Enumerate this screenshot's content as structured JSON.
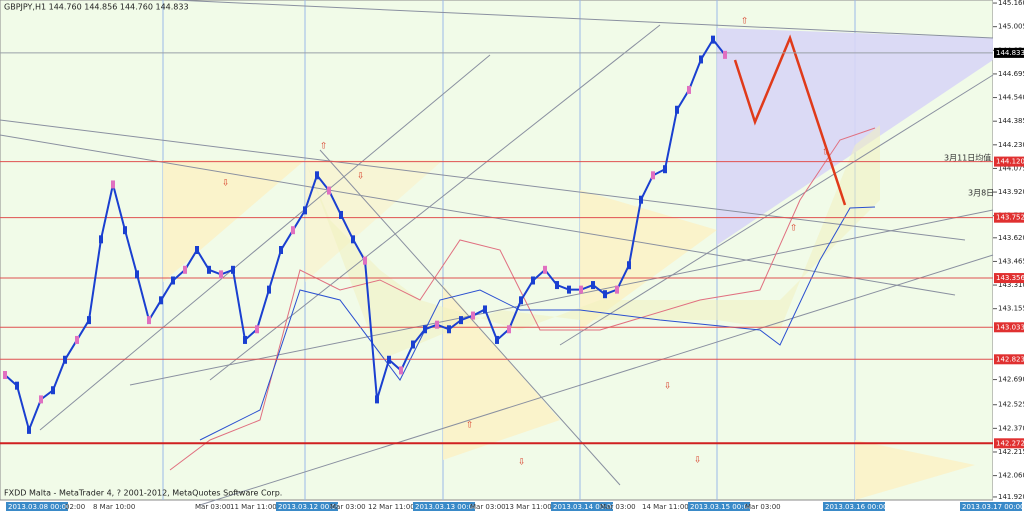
{
  "header": {
    "title": "GBPJPY,H1  144.760 144.856 144.760 144.833"
  },
  "footer": "FXDD Malta - MetaTrader 4, ? 2001-2012, MetaQuotes Software Corp.",
  "price_axis": {
    "range": [
      141.9,
      145.18
    ],
    "ticks": [
      {
        "value": 145.16,
        "label": "145.160"
      },
      145.005,
      {
        "value": 144.85,
        "label": "144.850"
      },
      144.695,
      {
        "value": 144.54,
        "label": "144.540"
      },
      144.385,
      {
        "value": 144.23,
        "label": "144.230"
      },
      144.075,
      {
        "value": 143.92,
        "label": "143.920"
      },
      143.765,
      {
        "value": 143.62,
        "label": "143.620"
      },
      143.465,
      {
        "value": 143.31,
        "label": "143.310"
      },
      143.155,
      {
        "value": 142.69,
        "label": "142.690"
      },
      142.525,
      {
        "value": 142.37,
        "label": "142.370"
      },
      142.215,
      {
        "value": 142.06,
        "label": "142.060"
      },
      {
        "value": 141.92,
        "label": "141.920"
      }
    ]
  },
  "price_lines": [
    {
      "value": 144.833,
      "color": "#000000",
      "line": "#9aa0a8"
    },
    {
      "value": {
        "value": 144.12,
        "label": "144.120"
      },
      "color": "#e03030",
      "line": "#e05050"
    },
    {
      "value": 143.752,
      "color": "#e03030",
      "line": "#e05050"
    },
    {
      "value": 143.356,
      "color": "#e03030",
      "line": "#e05050"
    },
    {
      "value": 143.033,
      "color": "#e03030",
      "line": "#e05050"
    },
    {
      "value": 142.823,
      "color": "#e03030",
      "line": "#e05050"
    },
    {
      "value": 142.272,
      "color": "#e03030",
      "line": "#d02020"
    }
  ],
  "price_path": {
    "closes": [
      142.72,
      142.65,
      142.36,
      142.56,
      142.62,
      142.82,
      142.95,
      143.08,
      143.61,
      143.97,
      143.67,
      143.38,
      143.08,
      143.21,
      143.34,
      143.41,
      143.54,
      143.41,
      143.38,
      143.41,
      142.95,
      143.02,
      143.28,
      143.54,
      143.67,
      143.8,
      144.03,
      143.93,
      143.77,
      143.61,
      143.47,
      142.56,
      142.82,
      142.75,
      142.92,
      143.02,
      143.05,
      143.02,
      143.08,
      143.11,
      143.15,
      142.95,
      143.02,
      143.21,
      143.34,
      143.41,
      143.31,
      143.28,
      143.28,
      143.31,
      143.25,
      143.28,
      143.44,
      143.87,
      144.03,
      144.07,
      144.46,
      144.59,
      144.79,
      144.92,
      144.82
    ],
    "color": "#1a3fd0"
  },
  "time_axis": {
    "labels": [
      {
        "text": "2013.03.08 00:00",
        "highlight": true
      },
      {
        "text": "02:00",
        "highlight": false
      },
      {
        "text": "8 Mar 10:00",
        "highlight": false
      },
      {
        "text": "Mar 03:00",
        "highlight": false
      },
      {
        "text": "11 Mar 11:00",
        "highlight": false
      },
      {
        "text": "2013.03.12 00:00",
        "highlight": true
      },
      {
        "text": "Mar 03:00",
        "highlight": false
      },
      {
        "text": "12 Mar 11:00",
        "highlight": false
      },
      {
        "text": "2013.03.13 00:00",
        "highlight": true
      },
      {
        "text": "Mar 03:00",
        "highlight": false
      },
      {
        "text": "13 Mar 11:00",
        "highlight": false
      },
      {
        "text": "2013.03.14 00:00",
        "highlight": true
      },
      {
        "text": "Mar 03:00",
        "highlight": false
      },
      {
        "text": "14 Mar 11:00",
        "highlight": false
      },
      {
        "text": "2013.03.15 00:00",
        "highlight": true
      },
      {
        "text": "Mar 03:00",
        "highlight": false
      },
      {
        "text": "2013.03.16 00:00",
        "highlight": true
      },
      {
        "text": "2013.03.17 00:00",
        "highlight": true
      }
    ]
  },
  "annotations": [
    "3月11日均值",
    "3月8日"
  ]
}
